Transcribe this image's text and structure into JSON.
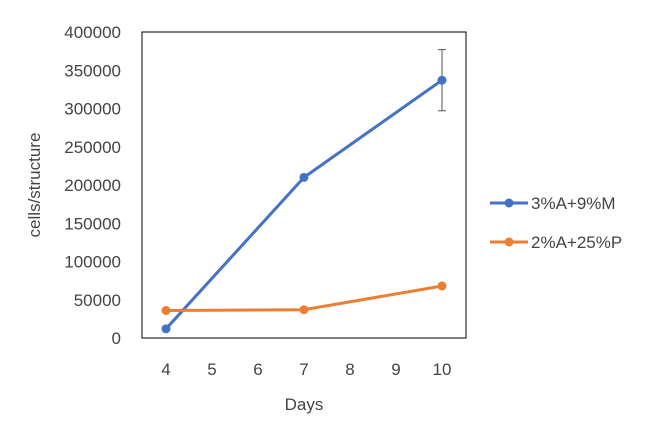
{
  "chart_data": {
    "type": "line",
    "xlabel": "Days",
    "ylabel": "cells/structure",
    "xlim": [
      4,
      10
    ],
    "ylim": [
      0,
      400000
    ],
    "x_ticks": [
      4,
      5,
      6,
      7,
      8,
      9,
      10
    ],
    "y_ticks": [
      0,
      50000,
      100000,
      150000,
      200000,
      250000,
      300000,
      350000,
      400000
    ],
    "grid": false,
    "legend_position": "right",
    "series": [
      {
        "name": "3%A+9%M",
        "color": "#4472c4",
        "x": [
          4,
          7,
          10
        ],
        "y": [
          12000,
          210000,
          337000
        ],
        "error": [
          null,
          null,
          40000
        ]
      },
      {
        "name": "2%A+25%P",
        "color": "#ed7d31",
        "x": [
          4,
          7,
          10
        ],
        "y": [
          36000,
          37000,
          68000
        ]
      }
    ]
  }
}
